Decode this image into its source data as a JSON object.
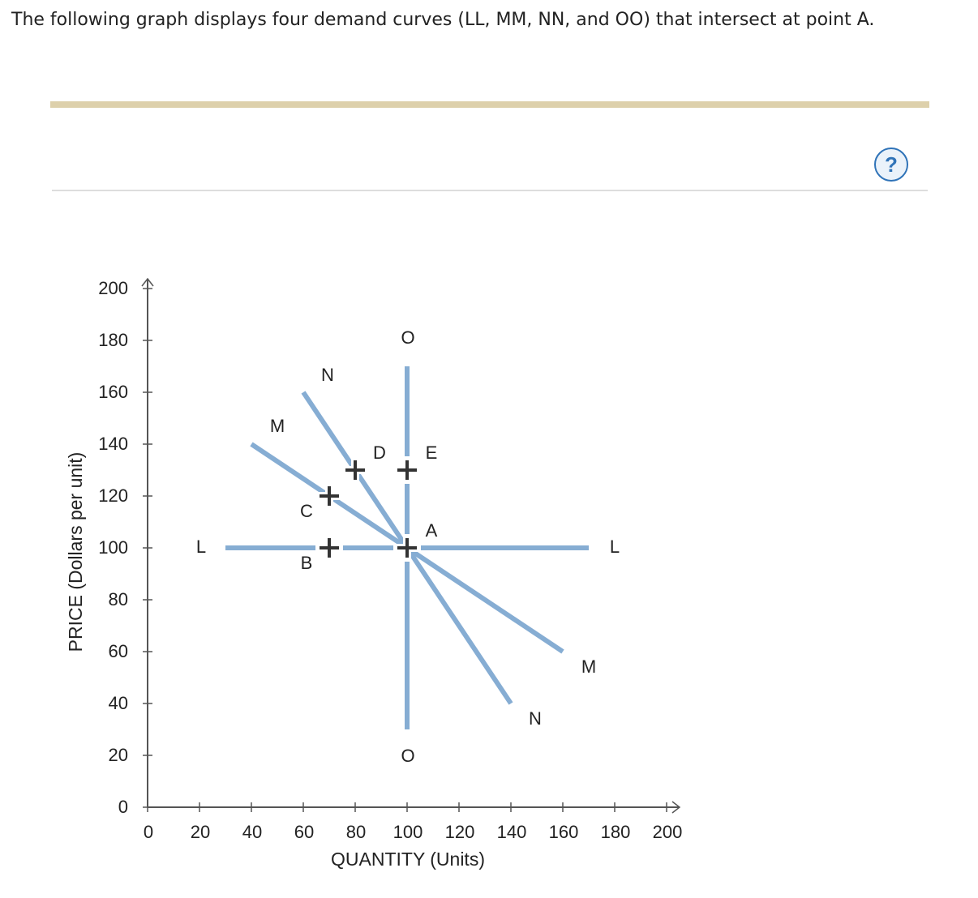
{
  "question": {
    "text": "The following graph displays four demand curves (LL, MM, NN, and OO) that intersect at point A."
  },
  "colors": {
    "curve": "#86add3",
    "axis": "#555555",
    "top_bar": "#ddd0ab",
    "help_icon": "#2f73b8"
  },
  "help_button": {
    "label": "?",
    "icon": "question-mark-circle-icon"
  },
  "chart_data": {
    "type": "line",
    "xlabel": "QUANTITY (Units)",
    "ylabel": "PRICE (Dollars per unit)",
    "xlim": [
      0,
      200
    ],
    "ylim": [
      0,
      200
    ],
    "x_ticks": [
      0,
      20,
      40,
      60,
      80,
      100,
      120,
      140,
      160,
      180,
      200
    ],
    "y_ticks": [
      0,
      20,
      40,
      60,
      80,
      100,
      120,
      140,
      160,
      180,
      200
    ],
    "grid": false,
    "curves": [
      {
        "id": "LL",
        "points": [
          [
            30,
            100
          ],
          [
            170,
            100
          ]
        ],
        "label_start": "L",
        "label_end": "L"
      },
      {
        "id": "MM",
        "points": [
          [
            40,
            140
          ],
          [
            160,
            60
          ]
        ],
        "label_start": "M",
        "label_end": "M"
      },
      {
        "id": "NN",
        "points": [
          [
            60,
            160
          ],
          [
            140,
            40
          ]
        ],
        "label_start": "N",
        "label_end": "N"
      },
      {
        "id": "OO",
        "points": [
          [
            100,
            170
          ],
          [
            100,
            30
          ]
        ],
        "label_start": "O",
        "label_end": "O"
      }
    ],
    "points": [
      {
        "label": "A",
        "x": 100,
        "y": 100
      },
      {
        "label": "B",
        "x": 70,
        "y": 100
      },
      {
        "label": "C",
        "x": 70,
        "y": 120
      },
      {
        "label": "D",
        "x": 80,
        "y": 130
      },
      {
        "label": "E",
        "x": 100,
        "y": 130
      }
    ]
  }
}
